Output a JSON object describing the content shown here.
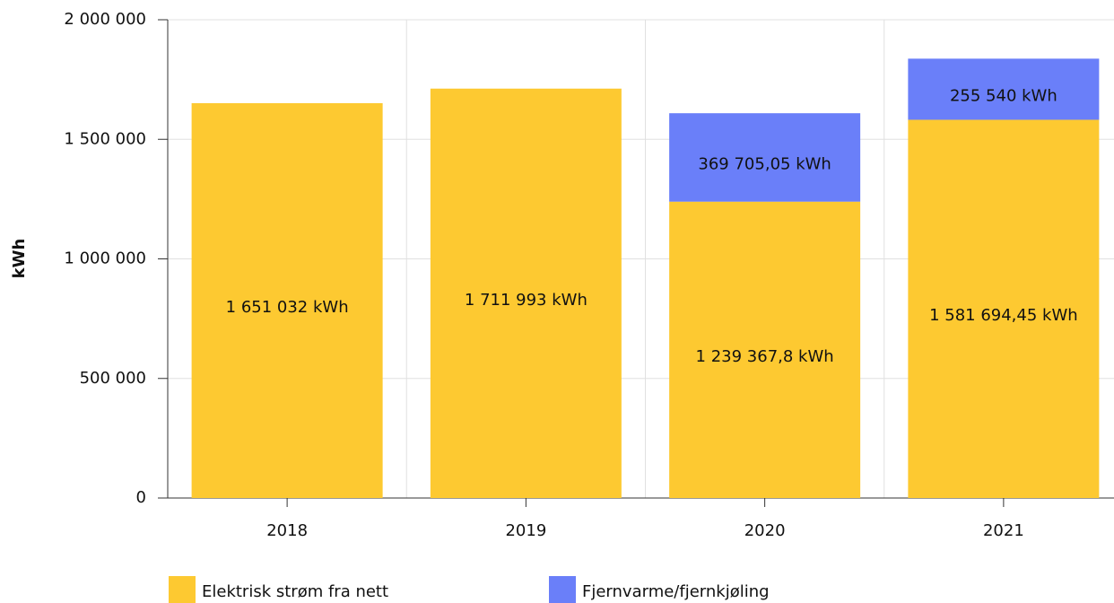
{
  "chart_data": {
    "type": "stacked_bar",
    "y_label": "kWh",
    "categories": [
      "2018",
      "2019",
      "2020",
      "2021"
    ],
    "series": [
      {
        "name": "Elektrisk strøm fra nett",
        "color": "#fdc931",
        "values": [
          1651032,
          1711993,
          1239367.8,
          1581694.45
        ],
        "value_labels": [
          "1 651 032 kWh",
          "1 711 993 kWh",
          "1 239 367,8 kWh",
          "1 581 694,45 kWh"
        ]
      },
      {
        "name": "Fjernvarme/fjernkjøling",
        "color": "#6a7ff9",
        "values": [
          null,
          null,
          369705.05,
          255540
        ],
        "value_labels": [
          null,
          null,
          "369 705,05 kWh",
          "255 540 kWh"
        ]
      }
    ],
    "ylim": [
      0,
      2000000
    ],
    "yticks": [
      0,
      {
        "value": 500000,
        "label": "500 000"
      },
      {
        "value": 1000000,
        "label": "1 000 000"
      },
      {
        "value": 1500000,
        "label": "1 500 000"
      },
      {
        "value": 2000000,
        "label": "2 000 000"
      }
    ],
    "grid": true
  }
}
